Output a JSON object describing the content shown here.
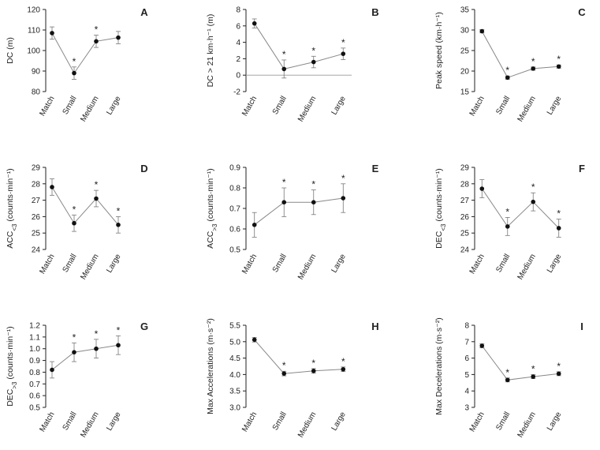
{
  "chart_data": [
    {
      "panel": "A",
      "type": "line",
      "ylabel": "DC (m)",
      "categories": [
        "Match",
        "Small",
        "Medium",
        "Large"
      ],
      "values": [
        108.5,
        89,
        104.5,
        106.3
      ],
      "errors": [
        3,
        3,
        3,
        3
      ],
      "significant": [
        false,
        true,
        true,
        false
      ],
      "ylim": [
        80,
        120
      ],
      "yticks": [
        "80",
        "90",
        "100",
        "110",
        "120"
      ],
      "zero_line": false
    },
    {
      "panel": "B",
      "type": "line",
      "ylabel": "DC > 21 km·h⁻¹ (m)",
      "categories": [
        "Match",
        "Small",
        "Medium",
        "Large"
      ],
      "values": [
        6.3,
        0.75,
        1.6,
        2.6
      ],
      "errors": [
        0.55,
        1.1,
        0.7,
        0.7
      ],
      "significant": [
        false,
        true,
        true,
        true
      ],
      "ylim": [
        -2,
        8
      ],
      "yticks": [
        "-2",
        "0",
        "2",
        "4",
        "6",
        "8"
      ],
      "zero_line": true
    },
    {
      "panel": "C",
      "type": "line",
      "ylabel": "Peak speed (km·h⁻¹)",
      "categories": [
        "Match",
        "Small",
        "Medium",
        "Large"
      ],
      "values": [
        29.7,
        18.4,
        20.6,
        21.1
      ],
      "errors": [
        0.4,
        0.4,
        0.4,
        0.4
      ],
      "significant": [
        false,
        true,
        true,
        true
      ],
      "ylim": [
        15,
        35
      ],
      "yticks": [
        "15",
        "20",
        "25",
        "30",
        "35"
      ],
      "zero_line": false
    },
    {
      "panel": "D",
      "type": "line",
      "ylabel": "ACC<3 (counts·min⁻¹)",
      "categories": [
        "Match",
        "Small",
        "Medium",
        "Large"
      ],
      "values": [
        27.8,
        25.6,
        27.1,
        25.5
      ],
      "errors": [
        0.5,
        0.5,
        0.5,
        0.5
      ],
      "significant": [
        false,
        true,
        true,
        true
      ],
      "ylim": [
        24,
        29
      ],
      "yticks": [
        "24",
        "25",
        "26",
        "27",
        "28",
        "29"
      ],
      "zero_line": false
    },
    {
      "panel": "E",
      "type": "line",
      "ylabel": "ACC>3 (counts·min⁻¹)",
      "categories": [
        "Match",
        "Small",
        "Medium",
        "Large"
      ],
      "values": [
        0.62,
        0.73,
        0.73,
        0.75
      ],
      "errors": [
        0.06,
        0.07,
        0.06,
        0.07
      ],
      "significant": [
        false,
        true,
        true,
        true
      ],
      "ylim": [
        0.5,
        0.9
      ],
      "yticks": [
        "0.5",
        "0.6",
        "0.7",
        "0.8",
        "0.9"
      ],
      "zero_line": false
    },
    {
      "panel": "F",
      "type": "line",
      "ylabel": "DEC<3 (counts·min⁻¹)",
      "categories": [
        "Match",
        "Small",
        "Medium",
        "Large"
      ],
      "values": [
        27.7,
        25.4,
        26.9,
        25.3
      ],
      "errors": [
        0.55,
        0.55,
        0.55,
        0.55
      ],
      "significant": [
        false,
        true,
        true,
        true
      ],
      "ylim": [
        24,
        29
      ],
      "yticks": [
        "24",
        "25",
        "26",
        "27",
        "28",
        "29"
      ],
      "zero_line": false
    },
    {
      "panel": "G",
      "type": "line",
      "ylabel": "DEC>3 (counts·min⁻¹)",
      "categories": [
        "Match",
        "Small",
        "Medium",
        "Large"
      ],
      "values": [
        0.82,
        0.97,
        1.0,
        1.03
      ],
      "errors": [
        0.07,
        0.08,
        0.08,
        0.08
      ],
      "significant": [
        false,
        true,
        true,
        true
      ],
      "ylim": [
        0.5,
        1.2
      ],
      "yticks": [
        "0.5",
        "0.6",
        "0.7",
        "0.8",
        "0.9",
        "1.0",
        "1.1",
        "1.2"
      ],
      "zero_line": false
    },
    {
      "panel": "H",
      "type": "line",
      "ylabel": "Max Accelerations (m·s⁻²)",
      "categories": [
        "Match",
        "Small",
        "Medium",
        "Large"
      ],
      "values": [
        5.06,
        4.03,
        4.11,
        4.16
      ],
      "errors": [
        0.07,
        0.07,
        0.07,
        0.07
      ],
      "significant": [
        false,
        true,
        true,
        true
      ],
      "ylim": [
        3.0,
        5.5
      ],
      "yticks": [
        "3.0",
        "3.5",
        "4.0",
        "4.5",
        "5.0",
        "5.5"
      ],
      "zero_line": false
    },
    {
      "panel": "I",
      "type": "line",
      "ylabel": "Max Decelerations (m·s⁻²)",
      "categories": [
        "Match",
        "Small",
        "Medium",
        "Large"
      ],
      "values": [
        6.75,
        4.67,
        4.87,
        5.05
      ],
      "errors": [
        0.12,
        0.12,
        0.12,
        0.12
      ],
      "significant": [
        false,
        true,
        true,
        true
      ],
      "ylim": [
        3,
        8
      ],
      "yticks": [
        "3",
        "4",
        "5",
        "6",
        "7",
        "8"
      ],
      "zero_line": false
    }
  ]
}
